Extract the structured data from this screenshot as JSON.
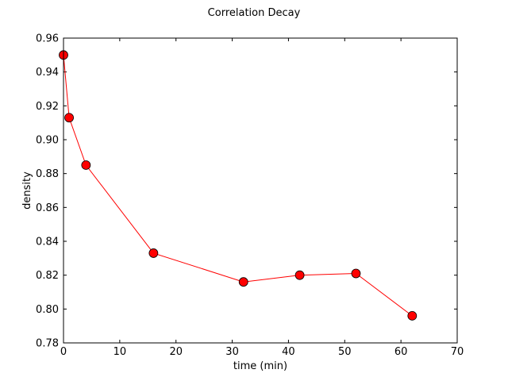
{
  "chart_data": {
    "type": "line",
    "title": "Correlation Decay",
    "xlabel": "time (min)",
    "ylabel": "density",
    "xlim": [
      0,
      70
    ],
    "ylim": [
      0.78,
      0.96
    ],
    "xticks": [
      0,
      10,
      20,
      30,
      40,
      50,
      60,
      70
    ],
    "yticks": [
      0.78,
      0.8,
      0.82,
      0.84,
      0.86,
      0.88,
      0.9,
      0.92,
      0.94,
      0.96
    ],
    "xtick_labels": [
      "0",
      "10",
      "20",
      "30",
      "40",
      "50",
      "60",
      "70"
    ],
    "ytick_labels": [
      "0.78",
      "0.80",
      "0.82",
      "0.84",
      "0.86",
      "0.88",
      "0.90",
      "0.92",
      "0.94",
      "0.96"
    ],
    "grid": false,
    "line_color": "#ff0000",
    "marker_color": "#ff0000",
    "series": [
      {
        "x": [
          0,
          1,
          4,
          16,
          32,
          42,
          52,
          62
        ],
        "y": [
          0.95,
          0.913,
          0.885,
          0.833,
          0.816,
          0.82,
          0.821,
          0.796
        ]
      }
    ]
  }
}
